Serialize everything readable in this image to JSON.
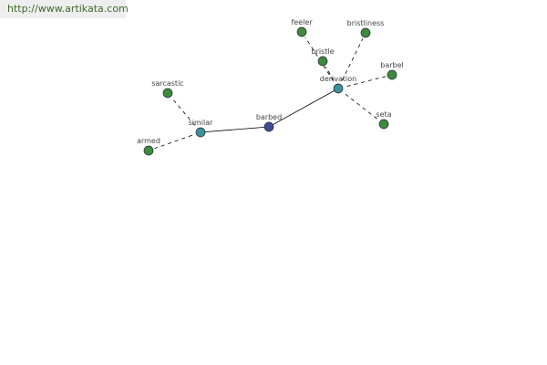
{
  "watermark": "http://www.artikata.com",
  "colors": {
    "center": "#3b4d9a",
    "hub": "#3e9098",
    "leaf": "#3f8a3c",
    "edge": "#000000"
  },
  "graph": {
    "nodes": [
      {
        "id": "barbed",
        "label": "barbed",
        "type": "center"
      },
      {
        "id": "similar",
        "label": "similar",
        "type": "hub"
      },
      {
        "id": "derivation",
        "label": "derivation",
        "type": "hub"
      },
      {
        "id": "sarcastic",
        "label": "sarcastic",
        "type": "leaf"
      },
      {
        "id": "armed",
        "label": "armed",
        "type": "leaf"
      },
      {
        "id": "feeler",
        "label": "feeler",
        "type": "leaf"
      },
      {
        "id": "bristliness",
        "label": "bristliness",
        "type": "leaf"
      },
      {
        "id": "bristle",
        "label": "bristle",
        "type": "leaf"
      },
      {
        "id": "barbel",
        "label": "barbel",
        "type": "leaf"
      },
      {
        "id": "seta",
        "label": "seta",
        "type": "leaf"
      }
    ],
    "edges": [
      {
        "from": "barbed",
        "to": "similar",
        "style": "solid"
      },
      {
        "from": "barbed",
        "to": "derivation",
        "style": "solid"
      },
      {
        "from": "similar",
        "to": "sarcastic",
        "style": "dashed"
      },
      {
        "from": "similar",
        "to": "armed",
        "style": "dashed"
      },
      {
        "from": "derivation",
        "to": "feeler",
        "style": "dashed"
      },
      {
        "from": "derivation",
        "to": "bristle",
        "style": "dashed"
      },
      {
        "from": "derivation",
        "to": "bristliness",
        "style": "dashed"
      },
      {
        "from": "derivation",
        "to": "barbel",
        "style": "dashed"
      },
      {
        "from": "derivation",
        "to": "seta",
        "style": "dashed"
      }
    ]
  }
}
